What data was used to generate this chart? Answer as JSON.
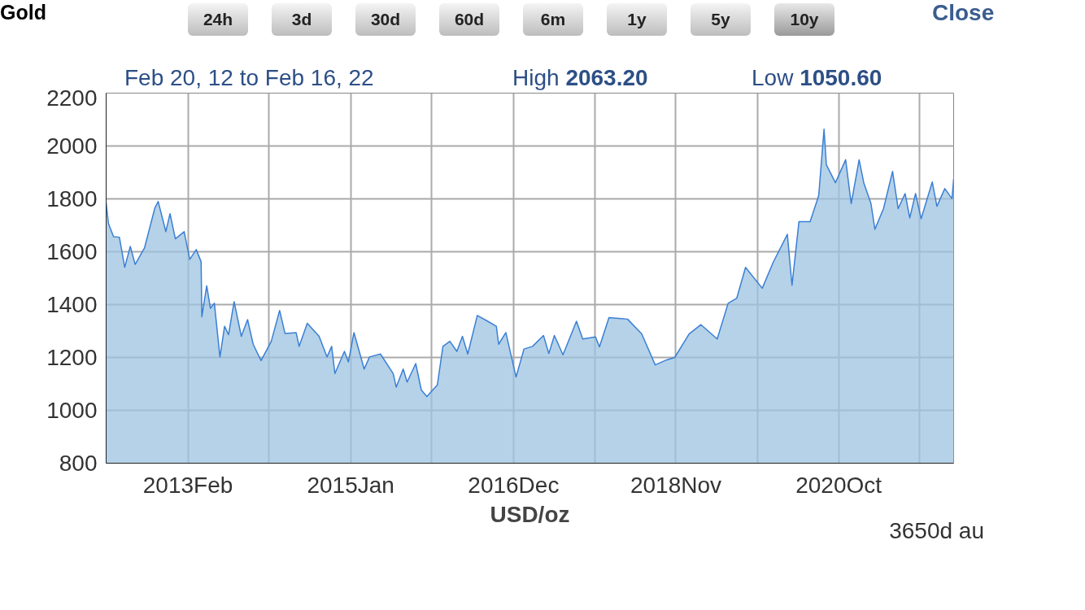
{
  "chart_data": {
    "type": "area",
    "title": "Gold",
    "subtitle": "Feb 20, 12 to Feb 16, 22",
    "xlabel": "USD/oz",
    "annotations": [
      "24h",
      "3d",
      "30d",
      "60d",
      "6m",
      "1y",
      "5y",
      "10y",
      "Close",
      "High 2063.20",
      "Low 1050.60",
      "3650d au"
    ],
    "xlim": [
      "2012-02-20",
      "2022-02-16"
    ],
    "xticks": [
      {
        "value": "2013-02-06",
        "label": "2013Feb"
      },
      {
        "value": "2014-01-20",
        "label": null
      },
      {
        "value": "2015-01-08",
        "label": "2015Jan"
      },
      {
        "value": "2015-12-21",
        "label": null
      },
      {
        "value": "2016-12-09",
        "label": "2016Dec"
      },
      {
        "value": "2017-11-26",
        "label": null
      },
      {
        "value": "2018-11-08",
        "label": "2018Nov"
      },
      {
        "value": "2019-10-26",
        "label": null
      },
      {
        "value": "2020-10-09",
        "label": "2020Oct"
      },
      {
        "value": "2021-09-23",
        "label": null
      }
    ],
    "ylim": [
      800,
      2200
    ],
    "yticks": [
      800,
      1000,
      1200,
      1400,
      1600,
      1800,
      2000,
      2200
    ],
    "grid": true,
    "x": [
      "2012-02-20",
      "2012-03-01",
      "2012-03-23",
      "2012-04-17",
      "2012-05-10",
      "2012-06-03",
      "2012-06-24",
      "2012-08-03",
      "2012-09-17",
      "2012-10-01",
      "2012-11-03",
      "2012-11-21",
      "2012-12-14",
      "2013-01-21",
      "2013-02-14",
      "2013-03-14",
      "2013-04-04",
      "2013-04-07",
      "2013-04-28",
      "2013-05-14",
      "2013-05-31",
      "2013-06-24",
      "2013-07-14",
      "2013-07-31",
      "2013-08-24",
      "2013-09-24",
      "2013-10-21",
      "2013-11-14",
      "2013-12-18",
      "2014-01-31",
      "2014-03-08",
      "2014-03-31",
      "2014-05-18",
      "2014-05-31",
      "2014-07-05",
      "2014-08-25",
      "2014-09-28",
      "2014-10-18",
      "2014-11-01",
      "2014-12-12",
      "2014-12-29",
      "2015-01-22",
      "2015-03-07",
      "2015-03-30",
      "2015-05-16",
      "2015-07-10",
      "2015-07-23",
      "2015-08-22",
      "2015-09-08",
      "2015-10-15",
      "2015-11-08",
      "2015-12-02",
      "2016-01-16",
      "2016-02-09",
      "2016-03-10",
      "2016-04-09",
      "2016-05-03",
      "2016-05-26",
      "2016-07-06",
      "2016-08-20",
      "2016-09-26",
      "2016-10-06",
      "2016-11-06",
      "2016-12-20",
      "2017-01-23",
      "2017-03-01",
      "2017-04-17",
      "2017-05-10",
      "2017-06-03",
      "2017-07-10",
      "2017-09-06",
      "2017-10-03",
      "2017-11-27",
      "2017-12-14",
      "2018-01-24",
      "2018-04-14",
      "2018-06-14",
      "2018-08-11",
      "2018-09-30",
      "2018-11-03",
      "2019-01-04",
      "2019-02-24",
      "2019-05-05",
      "2019-06-21",
      "2019-07-28",
      "2019-09-04",
      "2019-11-15",
      "2020-01-01",
      "2020-03-02",
      "2020-03-22",
      "2020-04-21",
      "2020-06-08",
      "2020-07-15",
      "2020-08-07",
      "2020-08-17",
      "2020-09-25",
      "2020-11-08",
      "2020-12-02",
      "2021-01-05",
      "2021-01-25",
      "2021-02-25",
      "2021-03-14",
      "2021-04-20",
      "2021-05-29",
      "2021-06-22",
      "2021-07-22",
      "2021-08-11",
      "2021-09-05",
      "2021-09-29",
      "2021-11-16",
      "2021-12-06",
      "2022-01-09",
      "2022-02-09",
      "2022-02-16"
    ],
    "series": [
      {
        "color": "#3a7fd5",
        "values": [
          1785,
          1706,
          1657,
          1655,
          1541,
          1620,
          1552,
          1614,
          1766,
          1790,
          1676,
          1744,
          1649,
          1676,
          1571,
          1608,
          1562,
          1354,
          1471,
          1386,
          1405,
          1202,
          1318,
          1286,
          1411,
          1280,
          1343,
          1250,
          1188,
          1261,
          1378,
          1291,
          1294,
          1242,
          1329,
          1280,
          1202,
          1242,
          1139,
          1223,
          1183,
          1294,
          1156,
          1202,
          1213,
          1139,
          1088,
          1156,
          1107,
          1177,
          1077,
          1052,
          1096,
          1242,
          1261,
          1223,
          1280,
          1213,
          1359,
          1337,
          1318,
          1250,
          1294,
          1126,
          1232,
          1242,
          1283,
          1215,
          1283,
          1210,
          1337,
          1270,
          1278,
          1240,
          1351,
          1345,
          1289,
          1172,
          1191,
          1200,
          1289,
          1324,
          1270,
          1405,
          1424,
          1541,
          1462,
          1560,
          1666,
          1473,
          1714,
          1714,
          1812,
          2064,
          1929,
          1861,
          1948,
          1782,
          1948,
          1861,
          1782,
          1685,
          1763,
          1904,
          1763,
          1820,
          1728,
          1820,
          1725,
          1864,
          1772,
          1839,
          1801,
          1875
        ]
      }
    ]
  }
}
